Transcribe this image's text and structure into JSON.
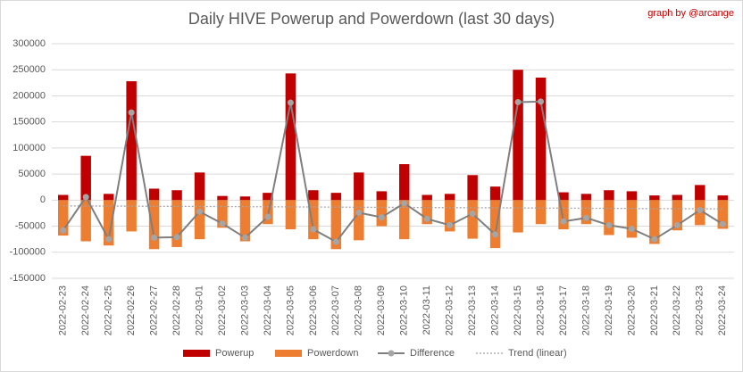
{
  "chart_data": {
    "type": "bar",
    "title": "Daily HIVE Powerup and Powerdown (last 30 days)",
    "credit": "graph by @arcange",
    "categories": [
      "2022-02-23",
      "2022-02-24",
      "2022-02-25",
      "2022-02-26",
      "2022-02-27",
      "2022-02-28",
      "2022-03-01",
      "2022-03-02",
      "2022-03-03",
      "2022-03-04",
      "2022-03-05",
      "2022-03-06",
      "2022-03-07",
      "2022-03-08",
      "2022-03-09",
      "2022-03-10",
      "2022-03-11",
      "2022-03-12",
      "2022-03-13",
      "2022-03-14",
      "2022-03-15",
      "2022-03-16",
      "2022-03-17",
      "2022-03-18",
      "2022-03-19",
      "2022-03-20",
      "2022-03-21",
      "2022-03-22",
      "2022-03-23",
      "2022-03-24"
    ],
    "series": [
      {
        "name": "Powerup",
        "type": "bar",
        "color": "#c00000",
        "values": [
          10000,
          85000,
          12000,
          228000,
          22000,
          19000,
          53000,
          8000,
          7000,
          14000,
          243000,
          19000,
          14000,
          53000,
          17000,
          69000,
          10000,
          12000,
          48000,
          26000,
          250000,
          235000,
          15000,
          12000,
          19000,
          17000,
          9000,
          10000,
          29000,
          9000
        ]
      },
      {
        "name": "Powerdown",
        "type": "bar",
        "color": "#ed7d31",
        "values": [
          -68000,
          -79000,
          -87000,
          -60000,
          -94000,
          -90000,
          -75000,
          -53000,
          -79000,
          -46000,
          -56000,
          -75000,
          -94000,
          -77000,
          -50000,
          -75000,
          -46000,
          -60000,
          -74000,
          -92000,
          -62000,
          -46000,
          -56000,
          -46000,
          -67000,
          -72000,
          -84000,
          -58000,
          -48000,
          -55000
        ]
      },
      {
        "name": "Difference",
        "type": "line",
        "color": "#7f7f7f",
        "marker_color": "#a5a5a5",
        "values": [
          -58000,
          6000,
          -75000,
          168000,
          -72000,
          -71000,
          -22000,
          -45000,
          -72000,
          -32000,
          187000,
          -56000,
          -80000,
          -24000,
          -33000,
          -6000,
          -36000,
          -48000,
          -26000,
          -66000,
          188000,
          189000,
          -41000,
          -34000,
          -48000,
          -55000,
          -75000,
          -48000,
          -19000,
          -46000
        ]
      },
      {
        "name": "Trend (linear)",
        "type": "dotted",
        "color": "#a5a5a5",
        "values": [
          -11000,
          -11200,
          -11400,
          -11600,
          -11800,
          -12000,
          -12200,
          -12400,
          -12600,
          -12800,
          -13000,
          -13200,
          -13400,
          -13600,
          -13800,
          -14000,
          -14200,
          -14400,
          -14600,
          -14800,
          -15000,
          -15200,
          -15400,
          -15600,
          -15800,
          -16000,
          -16200,
          -16400,
          -16600,
          -16800
        ]
      }
    ],
    "ylim": [
      -150000,
      300000
    ],
    "yticks": [
      -150000,
      -100000,
      -50000,
      0,
      50000,
      100000,
      150000,
      200000,
      250000,
      300000
    ],
    "grid": true,
    "legend": "bottom"
  }
}
